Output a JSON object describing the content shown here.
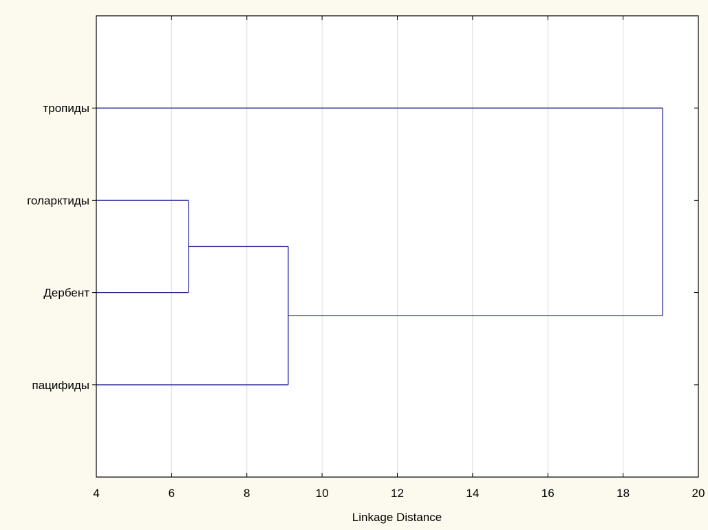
{
  "chart_data": {
    "type": "dendrogram",
    "orientation": "horizontal",
    "xlabel": "Linkage Distance",
    "xlim": [
      4,
      20
    ],
    "xticks": [
      4,
      6,
      8,
      10,
      12,
      14,
      16,
      18,
      20
    ],
    "grid": true,
    "leaves": [
      "тропиды",
      "голарктиды",
      "Дербент",
      "пацифиды"
    ],
    "merges": [
      {
        "members": [
          "голарктиды",
          "Дербент"
        ],
        "distance": 6.45
      },
      {
        "members": [
          "голарктиды",
          "Дербент",
          "пацифиды"
        ],
        "distance": 9.1
      },
      {
        "members": [
          "тропиды",
          "голарктиды",
          "Дербент",
          "пацифиды"
        ],
        "distance": 19.05
      }
    ],
    "colors": {
      "background": "#fcf9ee",
      "plot_background": "#ffffff",
      "line": "#2c2c9c",
      "grid": "#dcdcdc",
      "axis": "#000000"
    }
  }
}
